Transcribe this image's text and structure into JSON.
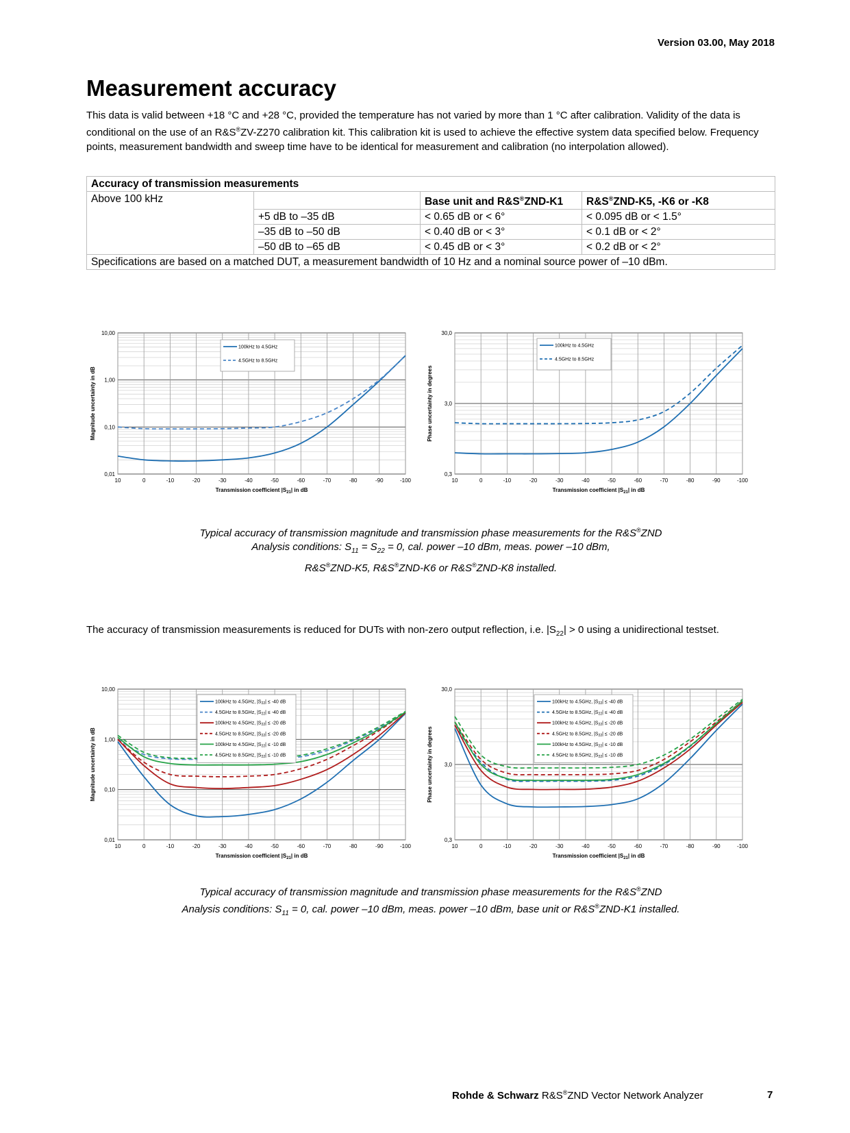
{
  "header": {
    "version": "Version 03.00, May 2018"
  },
  "section": {
    "title": "Measurement accuracy",
    "intro_p1": "This data is valid between +18 °C and +28 °C, provided the temperature has not varied by more than 1 °C after calibration. Validity of the data is conditional on the use of an R&S",
    "intro_p2": "ZV-Z270 calibration kit. This calibration kit is used to achieve the effective system data specified below. Frequency points, measurement bandwidth and sweep time have to be identical for measurement and calibration (no interpolation allowed)."
  },
  "table": {
    "heading": "Accuracy of transmission measurements",
    "row_label": "Above 100 kHz",
    "col1_a": "Base unit and R&S",
    "col1_b": "ZND-K1",
    "col2_a": "R&S",
    "col2_b": "ZND-K5, -K6 or -K8",
    "rows": [
      {
        "range": "+5 dB to –35 dB",
        "base": "< 0.65 dB or < 6°",
        "opt": "< 0.095 dB or < 1.5°"
      },
      {
        "range": "–35 dB to –50 dB",
        "base": "< 0.40 dB or < 3°",
        "opt": "< 0.1 dB or < 2°"
      },
      {
        "range": "–50 dB to –65 dB",
        "base": "< 0.45 dB or < 3°",
        "opt": "< 0.2 dB or < 2°"
      }
    ],
    "note": "Specifications are based on a matched DUT, a measurement bandwidth of 10 Hz and a nominal source power of –10 dBm."
  },
  "caption1": {
    "line1_a": "Typical accuracy of transmission magnitude and transmission phase measurements for the R&S",
    "line1_b": "ZND",
    "line2_a": "Analysis conditions: S",
    "s11": "11",
    "line2_b": " = S",
    "s22": "22",
    "line2_c": " = 0, cal. power –10 dBm, meas. power –10 dBm,",
    "line3_a": "R&S",
    "line3_b": "ZND-K5, R&S",
    "line3_c": "ZND-K6 or R&S",
    "line3_d": "ZND-K8 installed."
  },
  "paragraph2": {
    "text_a": "The accuracy of transmission measurements is reduced for DUTs with non-zero output reflection, i.e. |S",
    "sub": "22",
    "text_b": "| > 0 using a unidirectional testset."
  },
  "caption2": {
    "line1_a": "Typical accuracy of transmission magnitude and transmission phase measurements for the R&S",
    "line1_b": "ZND",
    "line2_a": "Analysis conditions: S",
    "s11": "11",
    "line2_b": " = 0, cal. power –10 dBm, meas. power –10 dBm, base unit or R&S",
    "line2_c": "ZND-K1 installed."
  },
  "footer": {
    "company": "Rohde & Schwarz",
    "r_s": "R&S",
    "product": "ZND Vector Network Analyzer",
    "page": "7"
  },
  "registered": "®",
  "chart_data": [
    {
      "type": "line",
      "scale_y": "log",
      "x": [
        10,
        0,
        -10,
        -20,
        -30,
        -40,
        -50,
        -60,
        -70,
        -80,
        -90,
        -100
      ],
      "xlabel_a": "Transmission coefficient |S",
      "xlabel_sub": "21",
      "xlabel_b": "| in dB",
      "ylabel": "Magnitude uncertainty in dB",
      "yticks": [
        "10,00",
        "1,00",
        "0,10",
        "0,01"
      ],
      "ylim": [
        0.01,
        10
      ],
      "series": [
        {
          "name": "100kHz to 4.5GHz",
          "color": "#1f6fb2",
          "dash": false,
          "values": [
            0.024,
            0.02,
            0.019,
            0.019,
            0.02,
            0.022,
            0.028,
            0.045,
            0.1,
            0.3,
            0.95,
            3.3
          ]
        },
        {
          "name": "4.5GHz to 8.5GHz",
          "color": "#4a86c8",
          "dash": true,
          "values": [
            0.1,
            0.092,
            0.091,
            0.091,
            0.092,
            0.095,
            0.1,
            0.13,
            0.2,
            0.4,
            1.0,
            3.3
          ]
        }
      ]
    },
    {
      "type": "line",
      "scale_y": "log",
      "x": [
        10,
        0,
        -10,
        -20,
        -30,
        -40,
        -50,
        -60,
        -70,
        -80,
        -90,
        -100
      ],
      "xlabel_a": "Transmission coefficient |S",
      "xlabel_sub": "21",
      "xlabel_b": "| in dB",
      "ylabel": "Phase uncertainty in degrees",
      "yticks": [
        "30,0",
        "3,0",
        "0,3"
      ],
      "ylim": [
        0.3,
        30
      ],
      "series": [
        {
          "name": "100kHz to 4.5GHz",
          "color": "#1f6fb2",
          "dash": false,
          "values": [
            0.6,
            0.58,
            0.58,
            0.58,
            0.585,
            0.6,
            0.67,
            0.85,
            1.4,
            3.0,
            7.5,
            18
          ]
        },
        {
          "name": "4.5GHz to 8.5GHz",
          "color": "#1f6fb2",
          "dash": true,
          "values": [
            1.6,
            1.55,
            1.55,
            1.55,
            1.55,
            1.56,
            1.6,
            1.75,
            2.3,
            4.2,
            9.5,
            20
          ]
        }
      ]
    },
    {
      "type": "line",
      "scale_y": "log",
      "x": [
        10,
        0,
        -10,
        -20,
        -30,
        -40,
        -50,
        -60,
        -70,
        -80,
        -90,
        -100
      ],
      "xlabel_a": "Transmission coefficient |S",
      "xlabel_sub": "21",
      "xlabel_b": "| in dB",
      "ylabel": "Magnitude uncertainty in dB",
      "yticks": [
        "10,00",
        "1,00",
        "0,10",
        "0,01"
      ],
      "ylim": [
        0.01,
        10
      ],
      "legend_sub": "22",
      "series": [
        {
          "name_a": "100kHz to 4.5GHz, |S",
          "name_b": "| ≤ -40 dB",
          "color": "#1f6fb2",
          "dash": false,
          "values": [
            0.9,
            0.18,
            0.05,
            0.03,
            0.029,
            0.032,
            0.04,
            0.065,
            0.14,
            0.38,
            1.0,
            3.3
          ]
        },
        {
          "name_a": "4.5GHz to 8.5GHz, |S",
          "name_b": "| ≤ -40 dB",
          "color": "#4a86c8",
          "dash": true,
          "values": [
            1.0,
            0.5,
            0.41,
            0.4,
            0.4,
            0.4,
            0.41,
            0.45,
            0.6,
            0.95,
            1.7,
            3.5
          ]
        },
        {
          "name_a": "100kHz to 4.5GHz, |S",
          "name_b": "| ≤ -20 dB",
          "color": "#b01c1c",
          "dash": false,
          "values": [
            1.0,
            0.3,
            0.13,
            0.11,
            0.105,
            0.11,
            0.12,
            0.16,
            0.25,
            0.5,
            1.2,
            3.4
          ]
        },
        {
          "name_a": "4.5GHz to 8.5GHz, |S",
          "name_b": "| ≤ -20 dB",
          "color": "#b01c1c",
          "dash": true,
          "values": [
            1.0,
            0.35,
            0.2,
            0.185,
            0.18,
            0.185,
            0.2,
            0.26,
            0.4,
            0.75,
            1.5,
            3.5
          ]
        },
        {
          "name_a": "100kHz to 4.5GHz, |S",
          "name_b": "| ≤ -10 dB",
          "color": "#27a348",
          "dash": false,
          "values": [
            1.1,
            0.45,
            0.33,
            0.31,
            0.31,
            0.31,
            0.32,
            0.36,
            0.5,
            0.85,
            1.6,
            3.5
          ]
        },
        {
          "name_a": "4.5GHz to 8.5GHz, |S",
          "name_b": "| ≤ -10 dB",
          "color": "#27a348",
          "dash": true,
          "values": [
            1.2,
            0.55,
            0.43,
            0.42,
            0.42,
            0.42,
            0.43,
            0.48,
            0.65,
            1.0,
            1.8,
            3.6
          ]
        }
      ]
    },
    {
      "type": "line",
      "scale_y": "log",
      "x": [
        10,
        0,
        -10,
        -20,
        -30,
        -40,
        -50,
        -60,
        -70,
        -80,
        -90,
        -100
      ],
      "xlabel_a": "Transmission coefficient |S",
      "xlabel_sub": "21",
      "xlabel_b": "| in dB",
      "ylabel": "Phase uncertainty in degrees",
      "yticks": [
        "30,0",
        "3,0",
        "0,3"
      ],
      "ylim": [
        0.3,
        30
      ],
      "legend_sub": "22",
      "series": [
        {
          "name_a": "100kHz to 4.5GHz, |S",
          "name_b": "| ≤ -40 dB",
          "color": "#1f6fb2",
          "dash": false,
          "values": [
            9,
            1.6,
            0.9,
            0.82,
            0.82,
            0.83,
            0.88,
            1.05,
            1.7,
            3.6,
            8.5,
            19
          ]
        },
        {
          "name_a": "4.5GHz to 8.5GHz, |S",
          "name_b": "| ≤ -40 dB",
          "color": "#1f6fb2",
          "dash": true,
          "values": [
            10,
            3.2,
            1.9,
            1.8,
            1.8,
            1.8,
            1.85,
            2.1,
            3.0,
            5.2,
            10.5,
            21
          ]
        },
        {
          "name_a": "100kHz to 4.5GHz, |S",
          "name_b": "| ≤ -20 dB",
          "color": "#b01c1c",
          "dash": false,
          "values": [
            10,
            2.5,
            1.5,
            1.4,
            1.4,
            1.41,
            1.5,
            1.8,
            2.7,
            4.8,
            10,
            20
          ]
        },
        {
          "name_a": "4.5GHz to 8.5GHz, |S",
          "name_b": "| ≤ -20 dB",
          "color": "#b01c1c",
          "dash": true,
          "values": [
            11,
            3.5,
            2.3,
            2.2,
            2.2,
            2.2,
            2.25,
            2.5,
            3.5,
            6.0,
            11,
            21
          ]
        },
        {
          "name_a": "100kHz to 4.5GHz, |S",
          "name_b": "| ≤ -10 dB",
          "color": "#27a348",
          "dash": false,
          "values": [
            11,
            3.0,
            1.95,
            1.85,
            1.85,
            1.85,
            1.9,
            2.2,
            3.1,
            5.3,
            10.5,
            21
          ]
        },
        {
          "name_a": "4.5GHz to 8.5GHz, |S",
          "name_b": "| ≤ -10 dB",
          "color": "#27a348",
          "dash": true,
          "values": [
            13,
            4.0,
            2.8,
            2.7,
            2.7,
            2.7,
            2.75,
            3.0,
            4.0,
            6.5,
            12,
            22
          ]
        }
      ]
    }
  ]
}
